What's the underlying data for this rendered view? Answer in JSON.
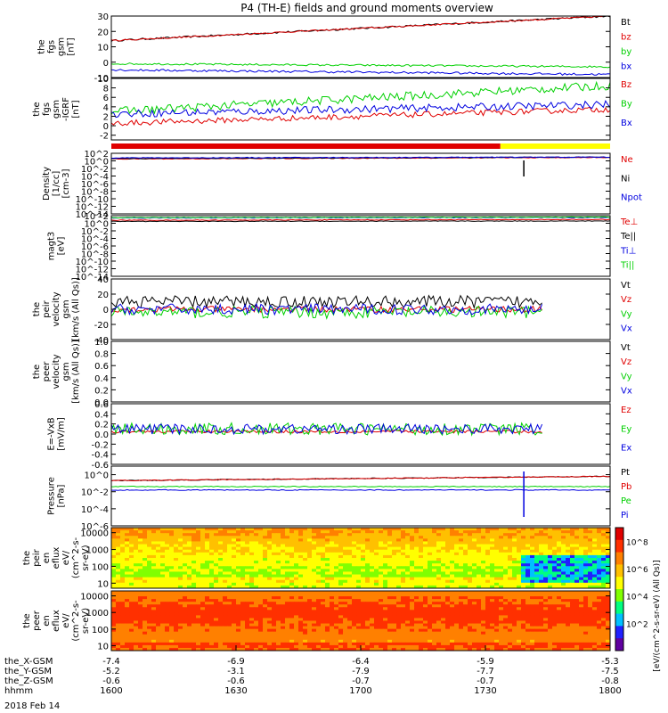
{
  "title": "P4 (TH-E) fields and ground moments overview",
  "date_label": "2018 Feb 14",
  "colors": {
    "black": "#000000",
    "red": "#e00000",
    "green": "#00d000",
    "blue": "#0000e0",
    "yellow": "#ffff00",
    "magenta": "#c000c0"
  },
  "chart_data": [
    {
      "id": "fgs",
      "type": "line",
      "ylabel": [
        "the",
        "fgs",
        "gsm",
        "[nT]"
      ],
      "ylim": [
        -10,
        30
      ],
      "yticks": [
        "30",
        "20",
        "10",
        "0",
        "-10"
      ],
      "ytick_values": [
        30,
        20,
        10,
        0,
        -10
      ],
      "series": [
        {
          "name": "Bt",
          "color": "black",
          "start": 14,
          "end": 30,
          "noise": 0.6
        },
        {
          "name": "bz",
          "color": "red",
          "start": 14,
          "end": 30,
          "noise": 0.5
        },
        {
          "name": "by",
          "color": "green",
          "start": -1,
          "end": -3,
          "noise": 0.6
        },
        {
          "name": "bx",
          "color": "blue",
          "start": -5,
          "end": -8,
          "noise": 0.7
        }
      ]
    },
    {
      "id": "fgs_dsl",
      "type": "line",
      "ylabel": [
        "the",
        "fgs",
        "gsm",
        "-IGRF",
        "[nT]"
      ],
      "ylim": [
        -3,
        10
      ],
      "yticks": [
        "10",
        "8",
        "6",
        "4",
        "2",
        "0",
        "-2"
      ],
      "ytick_values": [
        10,
        8,
        6,
        4,
        2,
        0,
        -2
      ],
      "series": [
        {
          "name": "Bz",
          "color": "red",
          "start": 0.5,
          "end": 3.5,
          "noise": 0.6
        },
        {
          "name": "By",
          "color": "green",
          "start": 3,
          "end": 8.5,
          "noise": 0.9
        },
        {
          "name": "Bx",
          "color": "blue",
          "start": 2.5,
          "end": 4.5,
          "noise": 0.8
        }
      ]
    },
    {
      "id": "density",
      "type": "line",
      "ylabel": [
        "Density",
        "[1/cc]",
        "[cm-3]"
      ],
      "log": true,
      "ylim": [
        -14,
        2
      ],
      "yticks": [
        "10^2",
        "10^0",
        "10^-2",
        "10^-4",
        "10^-6",
        "10^-8",
        "10^-10",
        "10^-12",
        "10^-14"
      ],
      "ytick_values": [
        2,
        0,
        -2,
        -4,
        -6,
        -8,
        -10,
        -12,
        -14
      ],
      "series": [
        {
          "name": "Ne",
          "color": "red",
          "start": 0.5,
          "end": 0.9,
          "noise": 0.1
        },
        {
          "name": "Ni",
          "color": "black",
          "start": 0.6,
          "end": 1.0,
          "noise": 0.1
        },
        {
          "name": "Npot",
          "color": "blue",
          "start": 0.8,
          "end": 1.0,
          "noise": 0.1
        }
      ]
    },
    {
      "id": "magt3",
      "type": "line",
      "ylabel": [
        "magt3",
        "[eV]"
      ],
      "log": true,
      "ylim": [
        -14,
        2
      ],
      "yticks": [
        "10^2",
        "10^0",
        "10^-2",
        "10^-4",
        "10^-6",
        "10^-8",
        "10^-10",
        "10^-12",
        "10^-14"
      ],
      "ytick_values": [
        2,
        0,
        -2,
        -4,
        -6,
        -8,
        -10,
        -12,
        -14
      ],
      "series": [
        {
          "name": "Te⊥",
          "color": "red",
          "start": 0.8,
          "end": 1.0,
          "noise": 0.08
        },
        {
          "name": "Te||",
          "color": "black",
          "start": 0.5,
          "end": 0.6,
          "noise": 0.08
        },
        {
          "name": "Ti⊥",
          "color": "blue",
          "start": 1.4,
          "end": 1.5,
          "noise": 0.08
        },
        {
          "name": "Ti||",
          "color": "green",
          "start": 1.5,
          "end": 1.6,
          "noise": 0.08
        }
      ]
    },
    {
      "id": "peir_velocity",
      "type": "line",
      "ylabel": [
        "the",
        "peir",
        "velocity",
        "gsm",
        "[km/s (All Qs)]"
      ],
      "ylim": [
        -40,
        40
      ],
      "yticks": [
        "40",
        "20",
        "0",
        "-20",
        "-40"
      ],
      "ytick_values": [
        40,
        20,
        0,
        -20,
        -40
      ],
      "series": [
        {
          "name": "Vt",
          "color": "black",
          "start": 10,
          "end": 10,
          "noise": 8
        },
        {
          "name": "Vz",
          "color": "red",
          "start": 0,
          "end": 0,
          "noise": 4
        },
        {
          "name": "Vy",
          "color": "green",
          "start": -4,
          "end": -4,
          "noise": 8
        },
        {
          "name": "Vx",
          "color": "blue",
          "start": 0,
          "end": 0,
          "noise": 7
        }
      ]
    },
    {
      "id": "peer_velocity",
      "type": "line",
      "ylabel": [
        "the",
        "peer",
        "velocity",
        "gsm",
        "[km/s (All Qs)]"
      ],
      "ylim": [
        0,
        1
      ],
      "yticks": [
        "1.0",
        "0.8",
        "0.6",
        "0.4",
        "0.2",
        "0.0"
      ],
      "ytick_values": [
        1,
        0.8,
        0.6,
        0.4,
        0.2,
        0
      ],
      "series": [
        {
          "name": "Vt",
          "color": "black"
        },
        {
          "name": "Vz",
          "color": "red"
        },
        {
          "name": "Vy",
          "color": "green"
        },
        {
          "name": "Vx",
          "color": "blue"
        }
      ]
    },
    {
      "id": "efield",
      "type": "line",
      "ylabel": [
        "E=-VxB",
        "[mV/m]"
      ],
      "ylim": [
        -0.6,
        0.6
      ],
      "yticks": [
        "0.6",
        "0.4",
        "0.2",
        "0.0",
        "-0.2",
        "-0.4",
        "-0.6"
      ],
      "ytick_values": [
        0.6,
        0.4,
        0.2,
        0,
        -0.2,
        -0.4,
        -0.6
      ],
      "series": [
        {
          "name": "Ez",
          "color": "red",
          "start": 0.05,
          "end": 0.05,
          "noise": 0.03
        },
        {
          "name": "Ey",
          "color": "green",
          "start": 0.1,
          "end": 0.1,
          "noise": 0.12
        },
        {
          "name": "Ex",
          "color": "blue",
          "start": 0.1,
          "end": 0.1,
          "noise": 0.1
        }
      ]
    },
    {
      "id": "pressure",
      "type": "line",
      "ylabel": [
        "Pressure",
        "[nPa]"
      ],
      "log": true,
      "ylim": [
        -6,
        1
      ],
      "yticks": [
        "10^0",
        "10^-2",
        "10^-4",
        "10^-6"
      ],
      "ytick_values": [
        0,
        -2,
        -4,
        -6
      ],
      "series": [
        {
          "name": "Pt",
          "color": "black",
          "start": -0.7,
          "end": -0.2,
          "noise": 0.05
        },
        {
          "name": "Pb",
          "color": "red",
          "start": -0.7,
          "end": -0.2,
          "noise": 0.05
        },
        {
          "name": "Pe",
          "color": "green",
          "start": -1.4,
          "end": -1.4,
          "noise": 0.05
        },
        {
          "name": "Pi",
          "color": "blue",
          "start": -1.8,
          "end": -1.8,
          "noise": 0.05
        }
      ]
    },
    {
      "id": "peir_en_eflux",
      "type": "heatmap",
      "ylabel": [
        "the",
        "peir",
        "en",
        "eflux",
        "eV/",
        "(cm^2-s-",
        "sr-eV)"
      ],
      "log": true,
      "ylim": [
        5,
        20000
      ],
      "yticks": [
        "10000",
        "1000",
        "100",
        "10"
      ],
      "ytick_values": [
        10000,
        1000,
        100,
        10
      ]
    },
    {
      "id": "peer_en_eflux",
      "type": "heatmap",
      "ylabel": [
        "the",
        "peer",
        "en",
        "eflux",
        "eV/",
        "(cm^2-s-",
        "sr-eV)"
      ],
      "log": true,
      "ylim": [
        5,
        20000
      ],
      "yticks": [
        "10000",
        "1000",
        "100",
        "10"
      ],
      "ytick_values": [
        10000,
        1000,
        100,
        10
      ]
    }
  ],
  "legend_labels": {
    "fgs": [
      "Bt",
      "bz",
      "by",
      "bx"
    ],
    "fgs_dsl": [
      "Bz",
      "By",
      "Bx"
    ],
    "density": [
      "Ne",
      "Ni",
      "Npot"
    ],
    "magt3": [
      "Te⊥",
      "Te||",
      "Ti⊥",
      "Ti||"
    ],
    "peir_velocity": [
      "Vt",
      "Vz",
      "Vy",
      "Vx"
    ],
    "peer_velocity": [
      "Vt",
      "Vz",
      "Vy",
      "Vx"
    ],
    "efield": [
      "Ez",
      "Ey",
      "Ex"
    ],
    "pressure": [
      "Pt",
      "Pb",
      "Pe",
      "Pi"
    ]
  },
  "colorbar": {
    "label": "[eV/(cm^2-s-sr-eV) (All Qs)]",
    "ticks": [
      "10^8",
      "10^6",
      "10^4",
      "10^2"
    ],
    "tick_values": [
      8,
      6,
      4,
      2
    ]
  },
  "x_axis": {
    "row_names": [
      "the_X-GSM",
      "the_Y-GSM",
      "the_Z-GSM",
      "hhmm"
    ],
    "columns": [
      [
        "-7.4",
        "-5.2",
        "-0.6",
        "1600"
      ],
      [
        "-6.9",
        "-3.1",
        "-0.6",
        "1630"
      ],
      [
        "-6.4",
        "-7.9",
        "-0.7",
        "1700"
      ],
      [
        "-5.9",
        "-7.7",
        "-0.7",
        "1730"
      ],
      [
        "-5.3",
        "-7.5",
        "-0.8",
        "1800"
      ]
    ],
    "tick_fraction": [
      0,
      0.25,
      0.5,
      0.75,
      1.0
    ]
  },
  "mode_bar": {
    "segments": [
      {
        "from": 0,
        "to": 0.78,
        "color": "red"
      },
      {
        "from": 0.78,
        "to": 1.0,
        "color": "yellow"
      }
    ]
  }
}
